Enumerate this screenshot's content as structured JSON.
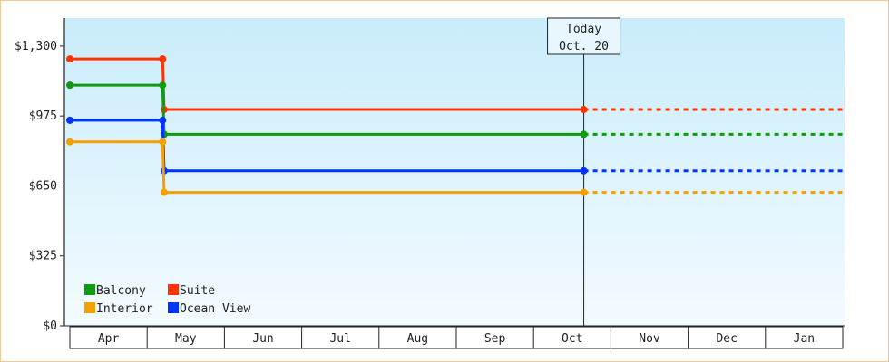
{
  "chart_data": {
    "type": "line",
    "step": true,
    "y_axis": {
      "ticks": [
        0,
        325,
        650,
        975,
        1300
      ],
      "tick_labels": [
        "$0",
        "$325",
        "$650",
        "$975",
        "$1,300"
      ],
      "ylim": [
        0,
        1430
      ]
    },
    "x_axis": {
      "months": [
        "Apr",
        "May",
        "Jun",
        "Jul",
        "Aug",
        "Sep",
        "Oct",
        "Nov",
        "Dec",
        "Jan"
      ]
    },
    "today": {
      "line1": "Today",
      "line2": "Oct. 20",
      "month_index": 6.65
    },
    "series": [
      {
        "name": "Suite",
        "color": "#ff3300",
        "points": [
          [
            0.0,
            1240
          ],
          [
            1.2,
            1240
          ],
          [
            1.22,
            1005
          ],
          [
            6.65,
            1005
          ]
        ],
        "projection": [
          [
            6.65,
            1005
          ],
          [
            10.0,
            1005
          ]
        ]
      },
      {
        "name": "Balcony",
        "color": "#119911",
        "points": [
          [
            0.0,
            1118
          ],
          [
            1.2,
            1118
          ],
          [
            1.22,
            890
          ],
          [
            6.65,
            890
          ]
        ],
        "projection": [
          [
            6.65,
            890
          ],
          [
            10.0,
            890
          ]
        ]
      },
      {
        "name": "Ocean View",
        "color": "#0033ff",
        "points": [
          [
            0.0,
            955
          ],
          [
            1.2,
            955
          ],
          [
            1.22,
            720
          ],
          [
            6.65,
            720
          ]
        ],
        "projection": [
          [
            6.65,
            720
          ],
          [
            10.0,
            720
          ]
        ]
      },
      {
        "name": "Interior",
        "color": "#f5a000",
        "points": [
          [
            0.0,
            855
          ],
          [
            1.2,
            855
          ],
          [
            1.22,
            620
          ],
          [
            6.65,
            620
          ]
        ],
        "projection": [
          [
            6.65,
            620
          ],
          [
            10.0,
            620
          ]
        ]
      }
    ],
    "legend": [
      {
        "name": "Balcony",
        "color": "#119911"
      },
      {
        "name": "Suite",
        "color": "#ff3300"
      },
      {
        "name": "Interior",
        "color": "#f5a000"
      },
      {
        "name": "Ocean View",
        "color": "#0033ff"
      }
    ],
    "legend_position": "bottom-left",
    "grid": false
  }
}
